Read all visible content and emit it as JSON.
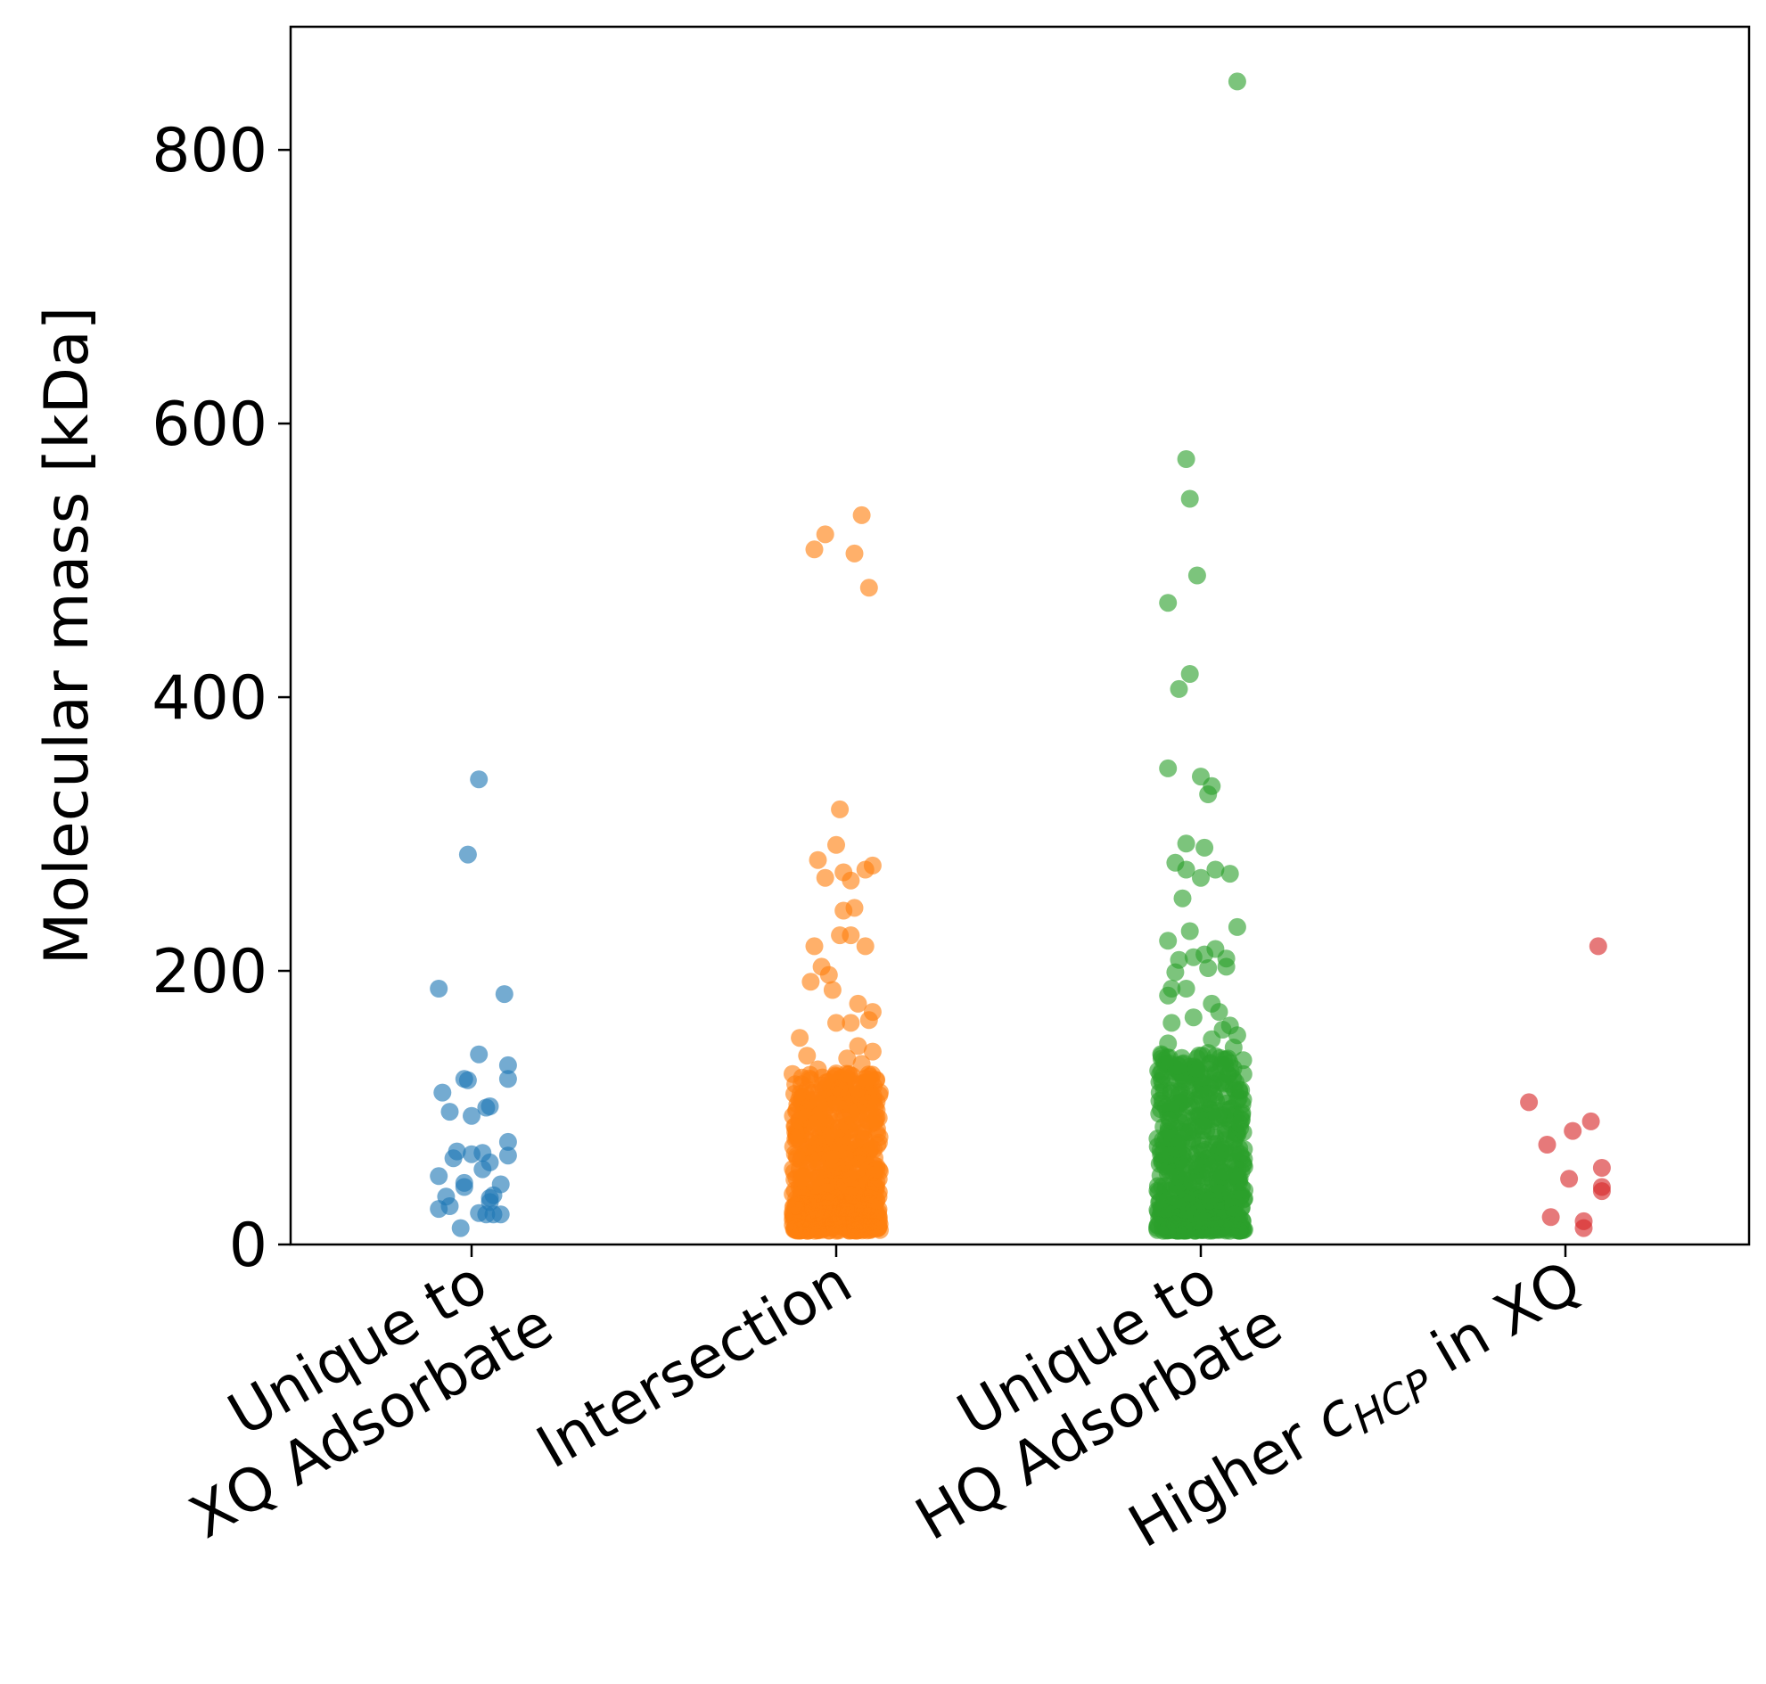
{
  "chart_data": {
    "type": "scatter",
    "subtype": "strip",
    "ylabel": "Molecular mass [kDa]",
    "ylim": [
      0,
      890
    ],
    "yticks": [
      "0",
      "200",
      "400",
      "600",
      "800"
    ],
    "categories": [
      {
        "line1": "Unique to",
        "line2": "XQ Adsorbate"
      },
      {
        "line1": "",
        "line2": "Intersection"
      },
      {
        "line1": "Unique to",
        "line2": "HQ Adsorbate"
      },
      {
        "line1": "",
        "line2_main": "Higher ",
        "line2_c": "c",
        "line2_sub": "HCP",
        "line2_tail": " in XQ"
      }
    ],
    "series": [
      {
        "name": "Unique to XQ Adsorbate",
        "color": "#1f77b4",
        "points": [
          [
            0.02,
            340
          ],
          [
            -0.01,
            285
          ],
          [
            -0.09,
            187
          ],
          [
            0.09,
            183
          ],
          [
            0.02,
            139
          ],
          [
            0.1,
            131
          ],
          [
            -0.02,
            121
          ],
          [
            -0.01,
            120
          ],
          [
            0.1,
            121
          ],
          [
            -0.08,
            111
          ],
          [
            0.05,
            101
          ],
          [
            0.04,
            100
          ],
          [
            -0.06,
            97
          ],
          [
            0.0,
            94
          ],
          [
            0.1,
            75
          ],
          [
            -0.04,
            68
          ],
          [
            0.03,
            67
          ],
          [
            0.0,
            66
          ],
          [
            0.1,
            65
          ],
          [
            -0.05,
            63
          ],
          [
            0.05,
            60
          ],
          [
            0.03,
            55
          ],
          [
            -0.09,
            50
          ],
          [
            -0.02,
            45
          ],
          [
            0.08,
            44
          ],
          [
            -0.02,
            42
          ],
          [
            0.06,
            36
          ],
          [
            0.05,
            34
          ],
          [
            -0.07,
            35
          ],
          [
            0.05,
            31
          ],
          [
            -0.06,
            28
          ],
          [
            -0.09,
            26
          ],
          [
            0.02,
            23
          ],
          [
            0.06,
            22
          ],
          [
            0.08,
            22
          ],
          [
            0.04,
            22
          ],
          [
            -0.03,
            12
          ]
        ]
      },
      {
        "name": "Intersection",
        "color": "#ff7f0e",
        "points": [
          [
            0.07,
            533
          ],
          [
            -0.03,
            519
          ],
          [
            -0.06,
            508
          ],
          [
            0.05,
            505
          ],
          [
            0.09,
            480
          ],
          [
            0.01,
            318
          ],
          [
            0.0,
            292
          ],
          [
            -0.05,
            281
          ],
          [
            0.1,
            277
          ],
          [
            0.08,
            274
          ],
          [
            0.02,
            272
          ],
          [
            -0.03,
            268
          ],
          [
            0.04,
            266
          ],
          [
            0.05,
            246
          ],
          [
            0.02,
            244
          ],
          [
            0.01,
            226
          ],
          [
            0.04,
            226
          ],
          [
            -0.06,
            218
          ],
          [
            0.08,
            218
          ],
          [
            -0.04,
            203
          ],
          [
            -0.02,
            197
          ],
          [
            -0.07,
            192
          ],
          [
            -0.01,
            186
          ],
          [
            0.06,
            176
          ],
          [
            0.1,
            170
          ],
          [
            0.0,
            162
          ],
          [
            0.04,
            162
          ],
          [
            0.09,
            164
          ],
          [
            -0.1,
            151
          ],
          [
            0.06,
            145
          ],
          [
            0.1,
            141
          ],
          [
            -0.08,
            138
          ],
          [
            0.03,
            136
          ],
          [
            0.07,
            132
          ],
          [
            -0.05,
            128
          ],
          [
            0.0,
            125
          ]
        ]
      },
      {
        "name": "Unique to HQ Adsorbate",
        "color": "#2ca02c",
        "points": [
          [
            0.1,
            850
          ],
          [
            -0.04,
            574
          ],
          [
            -0.03,
            545
          ],
          [
            -0.01,
            489
          ],
          [
            -0.09,
            469
          ],
          [
            -0.03,
            417
          ],
          [
            -0.06,
            406
          ],
          [
            -0.09,
            348
          ],
          [
            0.0,
            342
          ],
          [
            0.03,
            335
          ],
          [
            0.02,
            329
          ],
          [
            -0.04,
            293
          ],
          [
            0.01,
            290
          ],
          [
            -0.07,
            279
          ],
          [
            -0.04,
            274
          ],
          [
            0.04,
            274
          ],
          [
            0.08,
            271
          ],
          [
            0.0,
            268
          ],
          [
            -0.05,
            253
          ],
          [
            0.1,
            232
          ],
          [
            -0.03,
            229
          ],
          [
            -0.09,
            222
          ],
          [
            0.04,
            216
          ],
          [
            0.01,
            212
          ],
          [
            -0.02,
            210
          ],
          [
            0.07,
            209
          ],
          [
            -0.06,
            208
          ],
          [
            0.07,
            203
          ],
          [
            0.02,
            202
          ],
          [
            -0.07,
            199
          ],
          [
            -0.04,
            187
          ],
          [
            -0.08,
            187
          ],
          [
            -0.09,
            182
          ],
          [
            0.03,
            176
          ],
          [
            0.05,
            170
          ],
          [
            -0.02,
            166
          ],
          [
            -0.08,
            162
          ],
          [
            0.08,
            160
          ],
          [
            0.06,
            157
          ],
          [
            0.1,
            153
          ],
          [
            0.03,
            150
          ],
          [
            -0.09,
            147
          ],
          [
            0.09,
            144
          ],
          [
            0.02,
            140
          ]
        ]
      },
      {
        "name": "Higher cHCP in XQ",
        "color": "#d62728",
        "points": [
          [
            0.09,
            218
          ],
          [
            -0.1,
            104
          ],
          [
            0.07,
            90
          ],
          [
            0.02,
            83
          ],
          [
            -0.05,
            73
          ],
          [
            0.1,
            56
          ],
          [
            0.01,
            48
          ],
          [
            0.1,
            42
          ],
          [
            0.1,
            39
          ],
          [
            -0.04,
            20
          ],
          [
            0.05,
            17
          ],
          [
            0.05,
            12
          ]
        ]
      }
    ],
    "dense_clusters": [
      {
        "category": 1,
        "color": "#ff7f0e",
        "ymin": 10,
        "ymax": 125,
        "count": 700,
        "spread": 0.12
      },
      {
        "category": 2,
        "color": "#2ca02c",
        "ymin": 10,
        "ymax": 140,
        "count": 600,
        "spread": 0.12
      }
    ]
  }
}
